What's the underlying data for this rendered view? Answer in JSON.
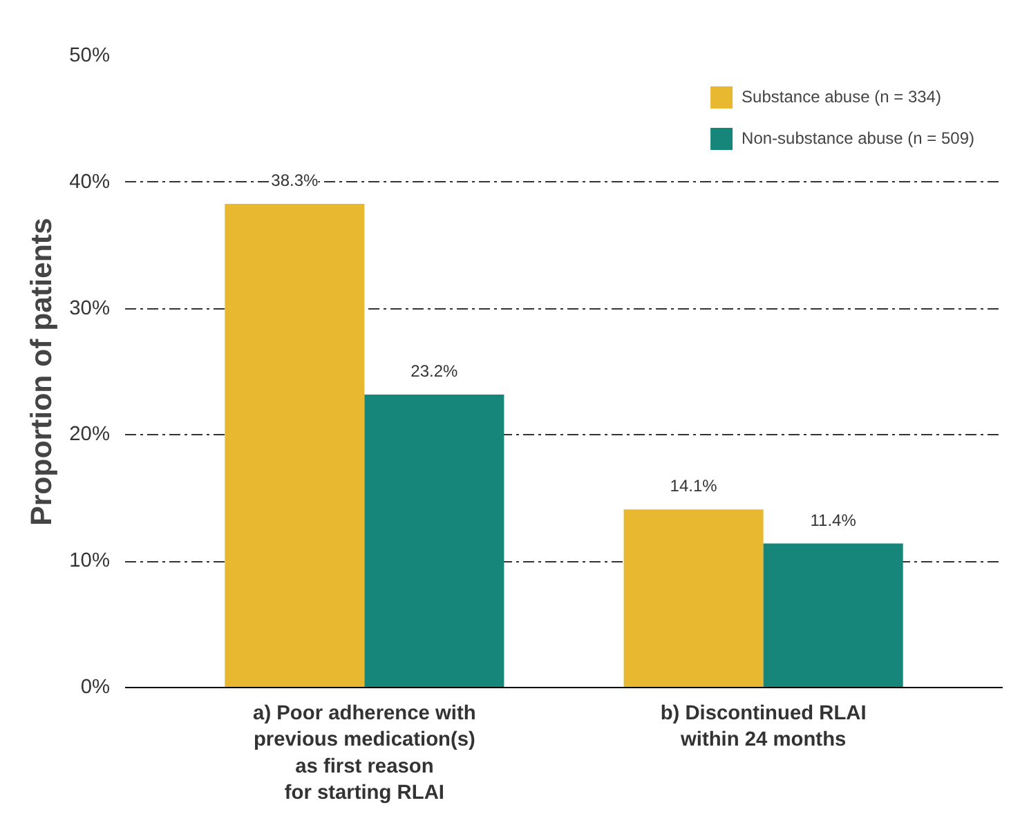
{
  "chart_data": {
    "type": "bar",
    "ylabel": "Proportion of patients",
    "categories": [
      "a) Poor adherence with\nprevious medication(s)\nas first reason\nfor starting RLAI",
      "b) Discontinued RLAI\nwithin 24 months"
    ],
    "series": [
      {
        "name": "Substance abuse (n = 334)",
        "color": "#e8b830",
        "values": [
          38.3,
          14.1
        ],
        "value_labels": [
          "38.3%",
          "14.1%"
        ]
      },
      {
        "name": "Non-substance abuse (n = 509)",
        "color": "#16857a",
        "values": [
          23.2,
          11.4
        ],
        "value_labels": [
          "23.2%",
          "11.4%"
        ]
      }
    ],
    "ylim": [
      0,
      50
    ],
    "yticks": [
      {
        "value": 0,
        "label": "0%"
      },
      {
        "value": 10,
        "label": "10%"
      },
      {
        "value": 20,
        "label": "20%"
      },
      {
        "value": 30,
        "label": "30%"
      },
      {
        "value": 40,
        "label": "40%"
      },
      {
        "value": 50,
        "label": "50%"
      }
    ],
    "grid": "y",
    "legend": "top right"
  }
}
